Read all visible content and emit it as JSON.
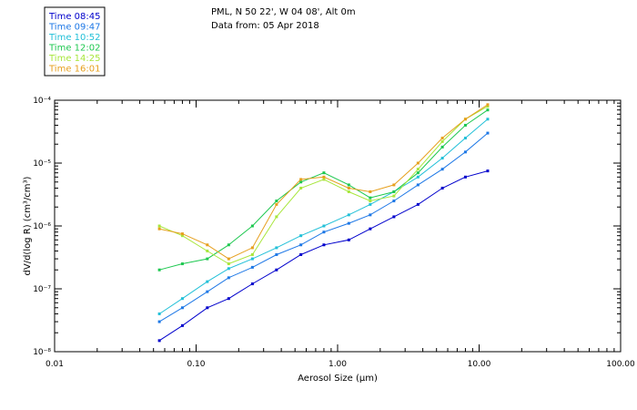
{
  "header": {
    "title_line1": "PML, N 50 22', W 04 08', Alt 0m",
    "title_line2": "Data from: 05 Apr 2018"
  },
  "chart_data": {
    "type": "line",
    "xscale": "log",
    "yscale": "log",
    "xlim": [
      0.01,
      100
    ],
    "ylim": [
      1e-08,
      0.0001
    ],
    "xlabel": "Aerosol Size (µm)",
    "ylabel": "dV/d(log R) (cm³/cm³)",
    "x_tick_labels": [
      "0.01",
      "0.10",
      "1.00",
      "10.00",
      "100.00"
    ],
    "y_tick_labels": [
      "10⁻⁸",
      "10⁻⁷",
      "10⁻⁶",
      "10⁻⁵",
      "10⁻⁴"
    ],
    "grid": false,
    "legend_position": "top-left",
    "x": [
      0.055,
      0.08,
      0.12,
      0.17,
      0.25,
      0.37,
      0.55,
      0.8,
      1.2,
      1.7,
      2.5,
      3.7,
      5.5,
      8,
      11.5
    ],
    "series": [
      {
        "name": "Time 08:45",
        "color": "#0000cc",
        "values": [
          1.5e-08,
          2.6e-08,
          5e-08,
          7e-08,
          1.2e-07,
          2e-07,
          3.5e-07,
          5e-07,
          6e-07,
          9e-07,
          1.4e-06,
          2.2e-06,
          4e-06,
          6e-06,
          7.5e-06
        ]
      },
      {
        "name": "Time 09:47",
        "color": "#1e78e6",
        "values": [
          3e-08,
          5e-08,
          9e-08,
          1.5e-07,
          2.2e-07,
          3.5e-07,
          5e-07,
          8e-07,
          1.1e-06,
          1.5e-06,
          2.5e-06,
          4.5e-06,
          8e-06,
          1.5e-05,
          3e-05
        ]
      },
      {
        "name": "Time 10:52",
        "color": "#22c0d8",
        "values": [
          4e-08,
          7e-08,
          1.3e-07,
          2.1e-07,
          3e-07,
          4.5e-07,
          7e-07,
          1e-06,
          1.5e-06,
          2.2e-06,
          3.5e-06,
          6e-06,
          1.2e-05,
          2.5e-05,
          5e-05
        ]
      },
      {
        "name": "Time 12:02",
        "color": "#1ec850",
        "values": [
          2e-07,
          2.5e-07,
          3e-07,
          5e-07,
          1e-06,
          2.5e-06,
          5e-06,
          7e-06,
          4.5e-06,
          2.8e-06,
          3.5e-06,
          7e-06,
          1.8e-05,
          4e-05,
          7e-05
        ]
      },
      {
        "name": "Time 14:25",
        "color": "#a8e63c",
        "values": [
          1e-06,
          7e-07,
          4e-07,
          2.5e-07,
          3.5e-07,
          1.4e-06,
          4e-06,
          5.5e-06,
          3.5e-06,
          2.5e-06,
          3e-06,
          8e-06,
          2.2e-05,
          5e-05,
          8e-05
        ]
      },
      {
        "name": "Time 16:01",
        "color": "#e6a01e",
        "values": [
          9e-07,
          7.5e-07,
          5e-07,
          3e-07,
          4.5e-07,
          2.2e-06,
          5.5e-06,
          6e-06,
          4e-06,
          3.5e-06,
          4.5e-06,
          1e-05,
          2.5e-05,
          5e-05,
          8.5e-05
        ]
      }
    ]
  }
}
